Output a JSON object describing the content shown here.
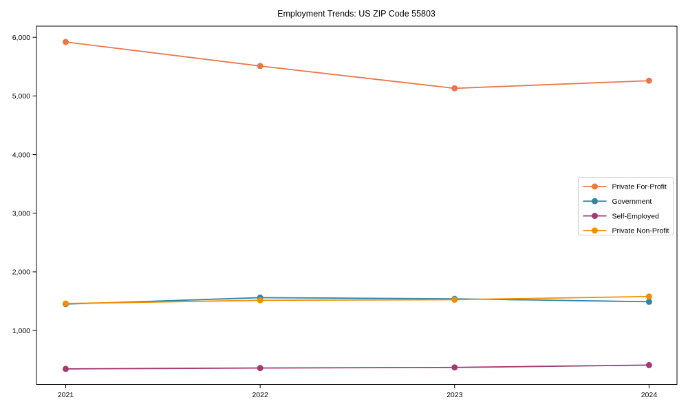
{
  "title": "Employment Trends: US ZIP Code 55803",
  "chart_data": {
    "type": "line",
    "title": "Employment Trends: US ZIP Code 55803",
    "xlabel": "",
    "ylabel": "",
    "x": [
      2021,
      2022,
      2023,
      2024
    ],
    "x_tick_labels": [
      "2021",
      "2022",
      "2023",
      "2024"
    ],
    "y_tick_values": [
      1000,
      2000,
      3000,
      4000,
      5000,
      6000
    ],
    "y_tick_labels": [
      "1,000",
      "2,000",
      "3,000",
      "4,000",
      "5,000",
      "6,000"
    ],
    "ylim": [
      80,
      6190
    ],
    "grid": false,
    "legend_position": "center-right",
    "marker": "circle",
    "series": [
      {
        "name": "Private For-Profit",
        "color": "#E8784C",
        "values": [
          5920,
          5510,
          5130,
          5260
        ]
      },
      {
        "name": "Government",
        "color": "#2E86AB",
        "values": [
          1450,
          1560,
          1540,
          1490
        ]
      },
      {
        "name": "Self-Employed",
        "color": "#A23B72",
        "values": [
          345,
          360,
          370,
          410
        ]
      },
      {
        "name": "Private Non-Profit",
        "color": "#F18F01",
        "values": [
          1460,
          1515,
          1525,
          1580
        ]
      }
    ],
    "spine_color": "#000000",
    "legend_border_color": "#cccccc",
    "background_color": "#ffffff"
  }
}
